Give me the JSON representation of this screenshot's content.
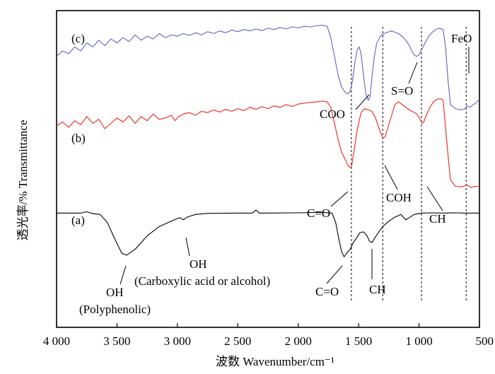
{
  "chart_data": {
    "type": "line",
    "xlabel": "波数 Wavenumber/cm⁻¹",
    "ylabel": "透光率/% Transmittance",
    "xlim": [
      4000,
      500
    ],
    "x_reversed": true,
    "xticks": [
      {
        "value": 4000,
        "label": "4 000"
      },
      {
        "value": 3500,
        "label": "3 500"
      },
      {
        "value": 3000,
        "label": "3 000"
      },
      {
        "value": 2500,
        "label": "2 500"
      },
      {
        "value": 2000,
        "label": "2 000"
      },
      {
        "value": 1500,
        "label": "1 500"
      },
      {
        "value": 1000,
        "label": "1 000"
      },
      {
        "value": 500,
        "label": "500"
      }
    ],
    "ylim": [
      0,
      100
    ],
    "y_ticks_shown": false,
    "grid": false,
    "legend": "none",
    "reference_lines": [
      1560,
      1300,
      980,
      610
    ],
    "series": [
      {
        "name": "(a)",
        "color": "#000000",
        "points": [
          [
            4000,
            30.5
          ],
          [
            3800,
            30.5
          ],
          [
            3750,
            31
          ],
          [
            3700,
            30.3
          ],
          [
            3640,
            30
          ],
          [
            3580,
            27
          ],
          [
            3520,
            21
          ],
          [
            3460,
            15.5
          ],
          [
            3420,
            14.8
          ],
          [
            3350,
            17
          ],
          [
            3250,
            22
          ],
          [
            3150,
            25.5
          ],
          [
            3050,
            27.5
          ],
          [
            2980,
            28.8
          ],
          [
            2950,
            28
          ],
          [
            2920,
            29
          ],
          [
            2850,
            30
          ],
          [
            2750,
            30.4
          ],
          [
            2500,
            30.5
          ],
          [
            2380,
            30.5
          ],
          [
            2350,
            31.6
          ],
          [
            2320,
            30.5
          ],
          [
            2000,
            30.6
          ],
          [
            1800,
            30.8
          ],
          [
            1720,
            30.5
          ],
          [
            1690,
            27
          ],
          [
            1660,
            20
          ],
          [
            1640,
            16
          ],
          [
            1620,
            14.2
          ],
          [
            1600,
            15.5
          ],
          [
            1570,
            17
          ],
          [
            1545,
            19.5
          ],
          [
            1520,
            21
          ],
          [
            1490,
            23.2
          ],
          [
            1460,
            23.5
          ],
          [
            1430,
            22
          ],
          [
            1410,
            20
          ],
          [
            1390,
            19.5
          ],
          [
            1370,
            21
          ],
          [
            1340,
            23
          ],
          [
            1300,
            25.5
          ],
          [
            1250,
            27.5
          ],
          [
            1200,
            29
          ],
          [
            1150,
            30
          ],
          [
            1110,
            28
          ],
          [
            1080,
            28.8
          ],
          [
            1040,
            30
          ],
          [
            980,
            30.5
          ],
          [
            900,
            30.6
          ],
          [
            800,
            30.5
          ],
          [
            700,
            30.6
          ],
          [
            600,
            30.5
          ],
          [
            500,
            30.5
          ]
        ]
      },
      {
        "name": "(b)",
        "color": "#e8241c",
        "points": [
          [
            4000,
            63
          ],
          [
            3950,
            64.5
          ],
          [
            3900,
            62.5
          ],
          [
            3850,
            65
          ],
          [
            3800,
            63.5
          ],
          [
            3750,
            66.5
          ],
          [
            3700,
            64
          ],
          [
            3650,
            65.5
          ],
          [
            3600,
            62
          ],
          [
            3550,
            64
          ],
          [
            3500,
            66
          ],
          [
            3450,
            64.5
          ],
          [
            3400,
            66.8
          ],
          [
            3350,
            64
          ],
          [
            3300,
            66.5
          ],
          [
            3250,
            65
          ],
          [
            3200,
            67.5
          ],
          [
            3150,
            65.5
          ],
          [
            3100,
            66
          ],
          [
            3050,
            67
          ],
          [
            3020,
            65
          ],
          [
            2990,
            66.5
          ],
          [
            2950,
            67.5
          ],
          [
            2900,
            68
          ],
          [
            2850,
            67
          ],
          [
            2800,
            68.5
          ],
          [
            2750,
            68
          ],
          [
            2700,
            69
          ],
          [
            2650,
            68.2
          ],
          [
            2600,
            69.2
          ],
          [
            2550,
            68.5
          ],
          [
            2500,
            69.5
          ],
          [
            2450,
            68.7
          ],
          [
            2400,
            70
          ],
          [
            2350,
            69.2
          ],
          [
            2300,
            70.2
          ],
          [
            2250,
            69.5
          ],
          [
            2200,
            70.5
          ],
          [
            2150,
            70
          ],
          [
            2100,
            71
          ],
          [
            2050,
            70.3
          ],
          [
            2000,
            71.2
          ],
          [
            1950,
            71.5
          ],
          [
            1900,
            71.8
          ],
          [
            1850,
            72
          ],
          [
            1800,
            72.3
          ],
          [
            1760,
            72
          ],
          [
            1730,
            70
          ],
          [
            1700,
            64
          ],
          [
            1670,
            58
          ],
          [
            1640,
            53
          ],
          [
            1610,
            50.5
          ],
          [
            1590,
            48.5
          ],
          [
            1570,
            47.5
          ],
          [
            1560,
            47.6
          ],
          [
            1540,
            53
          ],
          [
            1510,
            62
          ],
          [
            1480,
            68
          ],
          [
            1450,
            69.5
          ],
          [
            1420,
            69
          ],
          [
            1390,
            68.5
          ],
          [
            1360,
            66
          ],
          [
            1330,
            62
          ],
          [
            1300,
            58.5
          ],
          [
            1280,
            59
          ],
          [
            1260,
            62
          ],
          [
            1230,
            66.5
          ],
          [
            1200,
            71
          ],
          [
            1170,
            72
          ],
          [
            1140,
            71
          ],
          [
            1110,
            70
          ],
          [
            1080,
            69
          ],
          [
            1050,
            68.3
          ],
          [
            1020,
            67.5
          ],
          [
            990,
            65.5
          ],
          [
            975,
            64
          ],
          [
            960,
            64.5
          ],
          [
            940,
            67
          ],
          [
            910,
            70
          ],
          [
            880,
            72
          ],
          [
            850,
            73
          ],
          [
            820,
            73.2
          ],
          [
            800,
            72.5
          ],
          [
            780,
            62
          ],
          [
            760,
            52
          ],
          [
            740,
            43
          ],
          [
            700,
            40.5
          ],
          [
            650,
            40.3
          ],
          [
            600,
            41
          ],
          [
            570,
            40
          ],
          [
            540,
            40.5
          ],
          [
            500,
            40.5
          ]
        ]
      },
      {
        "name": "(c)",
        "color": "#5f62c4",
        "points": [
          [
            4000,
            89
          ],
          [
            3950,
            91
          ],
          [
            3900,
            90
          ],
          [
            3850,
            92.5
          ],
          [
            3800,
            91
          ],
          [
            3750,
            94
          ],
          [
            3700,
            92.5
          ],
          [
            3650,
            95
          ],
          [
            3600,
            93
          ],
          [
            3550,
            95.5
          ],
          [
            3500,
            94
          ],
          [
            3450,
            96
          ],
          [
            3400,
            94.5
          ],
          [
            3350,
            97
          ],
          [
            3300,
            95
          ],
          [
            3250,
            96.5
          ],
          [
            3200,
            95.5
          ],
          [
            3150,
            97.5
          ],
          [
            3100,
            96
          ],
          [
            3050,
            97
          ],
          [
            3000,
            96.5
          ],
          [
            2950,
            97.5
          ],
          [
            2900,
            96.8
          ],
          [
            2850,
            97.8
          ],
          [
            2800,
            97
          ],
          [
            2750,
            98.2
          ],
          [
            2700,
            97.5
          ],
          [
            2650,
            98.5
          ],
          [
            2600,
            97.8
          ],
          [
            2550,
            98.8
          ],
          [
            2500,
            98.2
          ],
          [
            2450,
            99
          ],
          [
            2400,
            98.5
          ],
          [
            2350,
            99.2
          ],
          [
            2300,
            98.6
          ],
          [
            2250,
            99.5
          ],
          [
            2200,
            99
          ],
          [
            2150,
            99.8
          ],
          [
            2100,
            99.2
          ],
          [
            2050,
            100
          ],
          [
            2000,
            99.6
          ],
          [
            1950,
            100.2
          ],
          [
            1900,
            100
          ],
          [
            1850,
            100.4
          ],
          [
            1800,
            100.6
          ],
          [
            1760,
            100.2
          ],
          [
            1730,
            96
          ],
          [
            1700,
            89
          ],
          [
            1670,
            82
          ],
          [
            1640,
            77.5
          ],
          [
            1610,
            75.5
          ],
          [
            1590,
            75
          ],
          [
            1570,
            76
          ],
          [
            1550,
            80
          ],
          [
            1530,
            87
          ],
          [
            1510,
            91.5
          ],
          [
            1495,
            92.5
          ],
          [
            1480,
            90
          ],
          [
            1460,
            82
          ],
          [
            1440,
            75
          ],
          [
            1420,
            72.5
          ],
          [
            1405,
            74
          ],
          [
            1390,
            81
          ],
          [
            1370,
            89
          ],
          [
            1350,
            94
          ],
          [
            1320,
            96.5
          ],
          [
            1290,
            97.5
          ],
          [
            1260,
            98
          ],
          [
            1230,
            98.5
          ],
          [
            1200,
            98
          ],
          [
            1170,
            97.5
          ],
          [
            1140,
            96.5
          ],
          [
            1110,
            95
          ],
          [
            1080,
            93
          ],
          [
            1060,
            91
          ],
          [
            1040,
            89.5
          ],
          [
            1020,
            89
          ],
          [
            1000,
            89.5
          ],
          [
            980,
            91.5
          ],
          [
            950,
            94
          ],
          [
            920,
            96.5
          ],
          [
            890,
            98
          ],
          [
            860,
            99
          ],
          [
            840,
            99.5
          ],
          [
            820,
            99.3
          ],
          [
            800,
            99
          ],
          [
            780,
            92
          ],
          [
            760,
            80
          ],
          [
            740,
            71
          ],
          [
            700,
            69.5
          ],
          [
            650,
            69
          ],
          [
            620,
            69.5
          ],
          [
            600,
            70.5
          ],
          [
            580,
            70
          ],
          [
            550,
            71
          ],
          [
            520,
            72
          ],
          [
            500,
            73
          ]
        ]
      }
    ],
    "series_labels": [
      "(a)",
      "(b)",
      "(c)"
    ],
    "annotations": [
      {
        "text": "COO",
        "x": 1430
      },
      {
        "text": "S=O",
        "x": 1060
      },
      {
        "text": "FeO",
        "x": 610
      },
      {
        "text": "C=O",
        "x": 1570
      },
      {
        "text": "COH",
        "x": 1300
      },
      {
        "text": "CH",
        "x": 975
      },
      {
        "text": "OH",
        "x": 3440
      },
      {
        "text": "(Polyphenolic)",
        "x": 3440
      },
      {
        "text": "OH",
        "x": 2980
      },
      {
        "text": "(Carboxylic acid or alcohol)",
        "x": 2980
      },
      {
        "text": "C=O",
        "x": 1630
      },
      {
        "text": "CH",
        "x": 1420
      }
    ]
  }
}
